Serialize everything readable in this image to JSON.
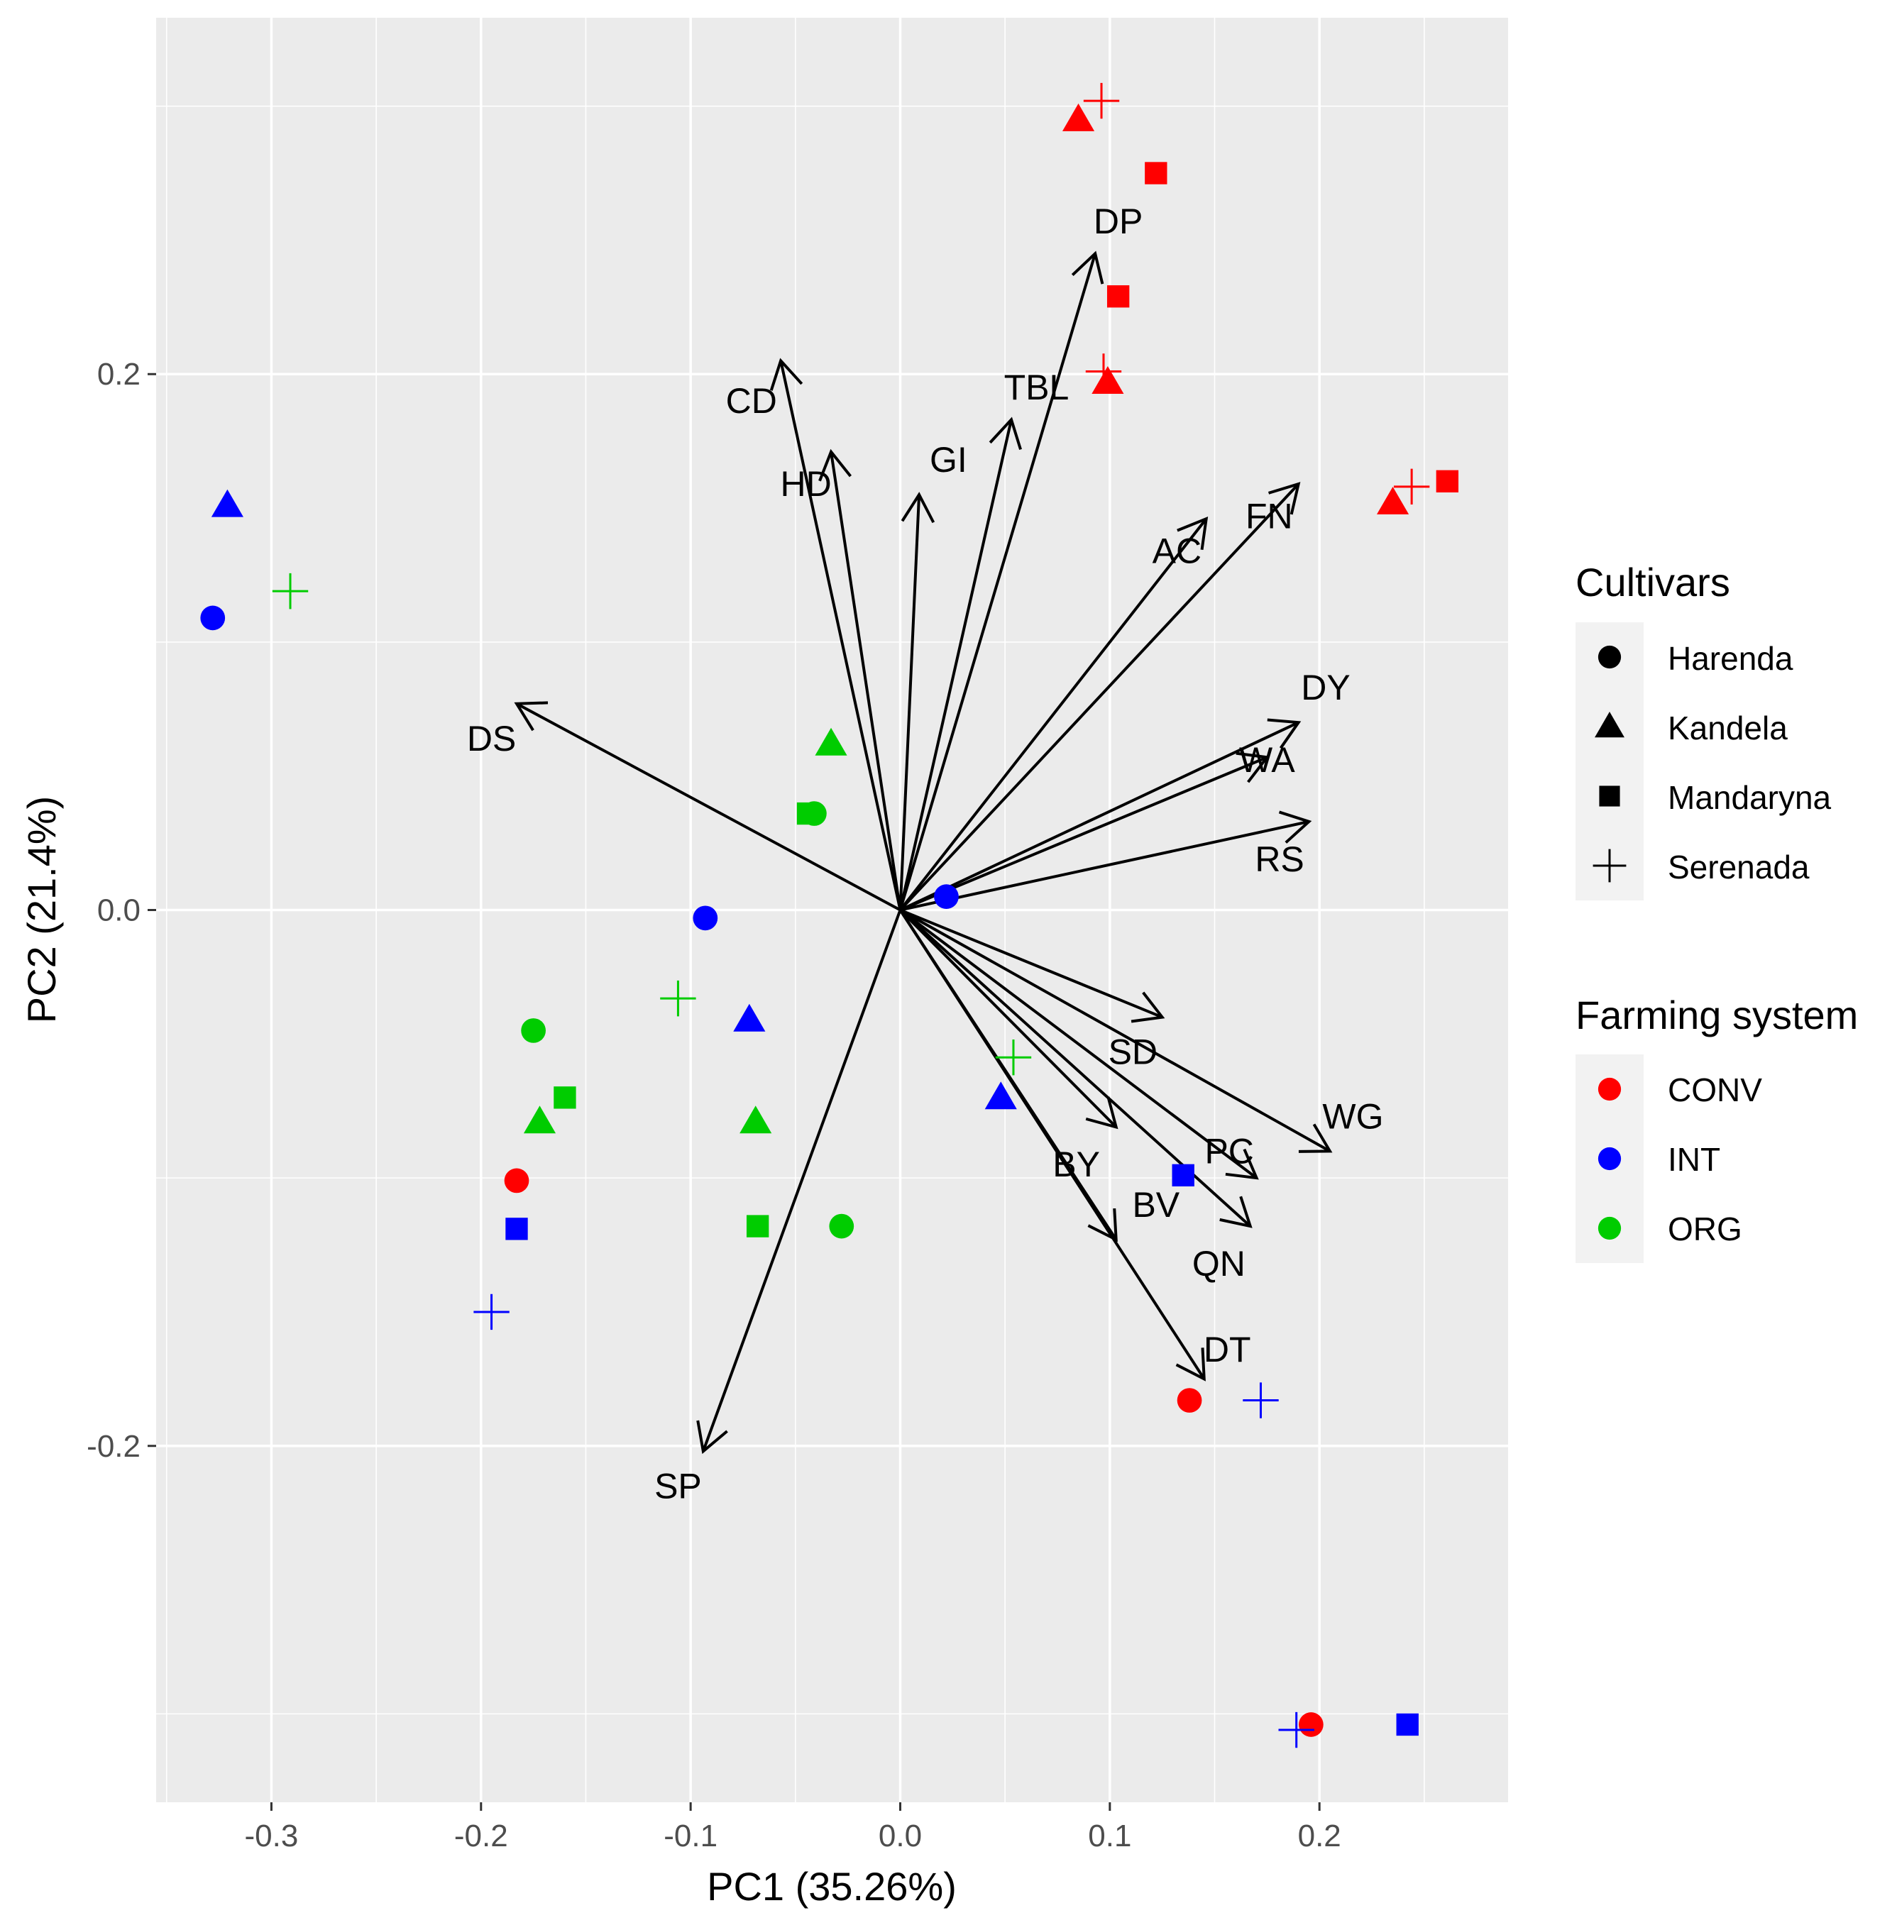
{
  "chart_data": {
    "type": "scatter",
    "subtype": "pca-biplot",
    "xlabel": "PC1 (35.26%)",
    "ylabel": "PC2 (21.4%)",
    "xlim": [
      -0.355,
      0.29
    ],
    "ylim": [
      -0.333,
      0.333
    ],
    "x_ticks": [
      -0.3,
      -0.2,
      -0.1,
      0.0,
      0.1,
      0.2
    ],
    "x_tick_labels": [
      "-0.3",
      "-0.2",
      "-0.1",
      "0.0",
      "0.1",
      "0.2"
    ],
    "y_ticks": [
      -0.2,
      0.0,
      0.2
    ],
    "y_tick_labels": [
      "-0.2",
      "0.0",
      "0.2"
    ],
    "grid": true,
    "colors": {
      "panel": "#EBEBEB",
      "grid": "#FFFFFF",
      "CONV": "#FF0000",
      "INT": "#0000FF",
      "ORG": "#00CC00",
      "arrow": "#000000"
    },
    "legends": [
      {
        "title": "Cultivars",
        "entries": [
          {
            "label": "Harenda",
            "shape": "circle"
          },
          {
            "label": "Kandela",
            "shape": "triangle"
          },
          {
            "label": "Mandaryna",
            "shape": "square"
          },
          {
            "label": "Serenada",
            "shape": "plus"
          }
        ]
      },
      {
        "title": "Farming system",
        "entries": [
          {
            "label": "CONV",
            "color": "#FF0000"
          },
          {
            "label": "INT",
            "color": "#0000FF"
          },
          {
            "label": "ORG",
            "color": "#00CC00"
          }
        ]
      }
    ],
    "loadings": [
      {
        "name": "DP",
        "x": 0.093,
        "y": 0.245,
        "label_x": 0.104,
        "label_y": 0.257
      },
      {
        "name": "CD",
        "x": -0.057,
        "y": 0.205,
        "label_x": -0.071,
        "label_y": 0.19
      },
      {
        "name": "TBL",
        "x": 0.053,
        "y": 0.183,
        "label_x": 0.065,
        "label_y": 0.195
      },
      {
        "name": "HD",
        "x": -0.033,
        "y": 0.171,
        "label_x": -0.045,
        "label_y": 0.159
      },
      {
        "name": "GI",
        "x": 0.009,
        "y": 0.155,
        "label_x": 0.023,
        "label_y": 0.168
      },
      {
        "name": "FN",
        "x": 0.19,
        "y": 0.159,
        "label_x": 0.176,
        "label_y": 0.147
      },
      {
        "name": "AC",
        "x": 0.146,
        "y": 0.146,
        "label_x": 0.132,
        "label_y": 0.134
      },
      {
        "name": "DS",
        "x": -0.183,
        "y": 0.077,
        "label_x": -0.195,
        "label_y": 0.064
      },
      {
        "name": "DY",
        "x": 0.19,
        "y": 0.07,
        "label_x": 0.203,
        "label_y": 0.083
      },
      {
        "name": "WA",
        "x": 0.175,
        "y": 0.057,
        "label_x": 0.175,
        "label_y": 0.056
      },
      {
        "name": "RS",
        "x": 0.195,
        "y": 0.033,
        "label_x": 0.181,
        "label_y": 0.019
      },
      {
        "name": "SD",
        "x": 0.125,
        "y": -0.04,
        "label_x": 0.111,
        "label_y": -0.053
      },
      {
        "name": "WG",
        "x": 0.205,
        "y": -0.09,
        "label_x": 0.216,
        "label_y": -0.077
      },
      {
        "name": "PC",
        "x": 0.17,
        "y": -0.1,
        "label_x": 0.157,
        "label_y": -0.09
      },
      {
        "name": "BY",
        "x": 0.103,
        "y": -0.081,
        "label_x": 0.084,
        "label_y": -0.095
      },
      {
        "name": "BV",
        "x": 0.103,
        "y": -0.123,
        "label_x": 0.122,
        "label_y": -0.11
      },
      {
        "name": "QN",
        "x": 0.167,
        "y": -0.118,
        "label_x": 0.152,
        "label_y": -0.132
      },
      {
        "name": "DT",
        "x": 0.145,
        "y": -0.175,
        "label_x": 0.156,
        "label_y": -0.164
      },
      {
        "name": "SP",
        "x": -0.094,
        "y": -0.202,
        "label_x": -0.106,
        "label_y": -0.215
      }
    ],
    "points": [
      {
        "cultivar": "Serenada",
        "system": "CONV",
        "x": 0.096,
        "y": 0.302
      },
      {
        "cultivar": "Kandela",
        "system": "CONV",
        "x": 0.085,
        "y": 0.295
      },
      {
        "cultivar": "Mandaryna",
        "system": "CONV",
        "x": 0.122,
        "y": 0.275
      },
      {
        "cultivar": "Mandaryna",
        "system": "CONV",
        "x": 0.104,
        "y": 0.229
      },
      {
        "cultivar": "Serenada",
        "system": "CONV",
        "x": 0.097,
        "y": 0.201
      },
      {
        "cultivar": "Kandela",
        "system": "CONV",
        "x": 0.099,
        "y": 0.197
      },
      {
        "cultivar": "Mandaryna",
        "system": "CONV",
        "x": 0.261,
        "y": 0.16
      },
      {
        "cultivar": "Serenada",
        "system": "CONV",
        "x": 0.244,
        "y": 0.158
      },
      {
        "cultivar": "Kandela",
        "system": "CONV",
        "x": 0.235,
        "y": 0.152
      },
      {
        "cultivar": "Kandela",
        "system": "INT",
        "x": -0.321,
        "y": 0.151
      },
      {
        "cultivar": "Harenda",
        "system": "INT",
        "x": -0.328,
        "y": 0.109
      },
      {
        "cultivar": "Serenada",
        "system": "ORG",
        "x": -0.291,
        "y": 0.119
      },
      {
        "cultivar": "Kandela",
        "system": "ORG",
        "x": -0.033,
        "y": 0.062
      },
      {
        "cultivar": "Mandaryna",
        "system": "ORG",
        "x": -0.044,
        "y": 0.036
      },
      {
        "cultivar": "Harenda",
        "system": "ORG",
        "x": -0.041,
        "y": 0.036
      },
      {
        "cultivar": "Harenda",
        "system": "INT",
        "x": 0.022,
        "y": 0.005
      },
      {
        "cultivar": "Harenda",
        "system": "INT",
        "x": -0.093,
        "y": -0.003
      },
      {
        "cultivar": "Serenada",
        "system": "ORG",
        "x": -0.106,
        "y": -0.033
      },
      {
        "cultivar": "Kandela",
        "system": "INT",
        "x": -0.072,
        "y": -0.041
      },
      {
        "cultivar": "Harenda",
        "system": "ORG",
        "x": -0.175,
        "y": -0.045
      },
      {
        "cultivar": "Serenada",
        "system": "ORG",
        "x": 0.054,
        "y": -0.055
      },
      {
        "cultivar": "Kandela",
        "system": "INT",
        "x": 0.048,
        "y": -0.07
      },
      {
        "cultivar": "Mandaryna",
        "system": "ORG",
        "x": -0.16,
        "y": -0.07
      },
      {
        "cultivar": "Kandela",
        "system": "ORG",
        "x": -0.172,
        "y": -0.079
      },
      {
        "cultivar": "Kandela",
        "system": "ORG",
        "x": -0.069,
        "y": -0.079
      },
      {
        "cultivar": "Mandaryna",
        "system": "INT",
        "x": 0.135,
        "y": -0.099
      },
      {
        "cultivar": "Harenda",
        "system": "CONV",
        "x": -0.183,
        "y": -0.101
      },
      {
        "cultivar": "Mandaryna",
        "system": "INT",
        "x": -0.183,
        "y": -0.119
      },
      {
        "cultivar": "Mandaryna",
        "system": "ORG",
        "x": -0.068,
        "y": -0.118
      },
      {
        "cultivar": "Harenda",
        "system": "ORG",
        "x": -0.028,
        "y": -0.118
      },
      {
        "cultivar": "Serenada",
        "system": "INT",
        "x": -0.195,
        "y": -0.15
      },
      {
        "cultivar": "Harenda",
        "system": "CONV",
        "x": 0.138,
        "y": -0.183
      },
      {
        "cultivar": "Serenada",
        "system": "INT",
        "x": 0.172,
        "y": -0.183
      },
      {
        "cultivar": "Harenda",
        "system": "CONV",
        "x": 0.196,
        "y": -0.304
      },
      {
        "cultivar": "Serenada",
        "system": "INT",
        "x": 0.189,
        "y": -0.306
      },
      {
        "cultivar": "Mandaryna",
        "system": "INT",
        "x": 0.242,
        "y": -0.304
      }
    ]
  }
}
